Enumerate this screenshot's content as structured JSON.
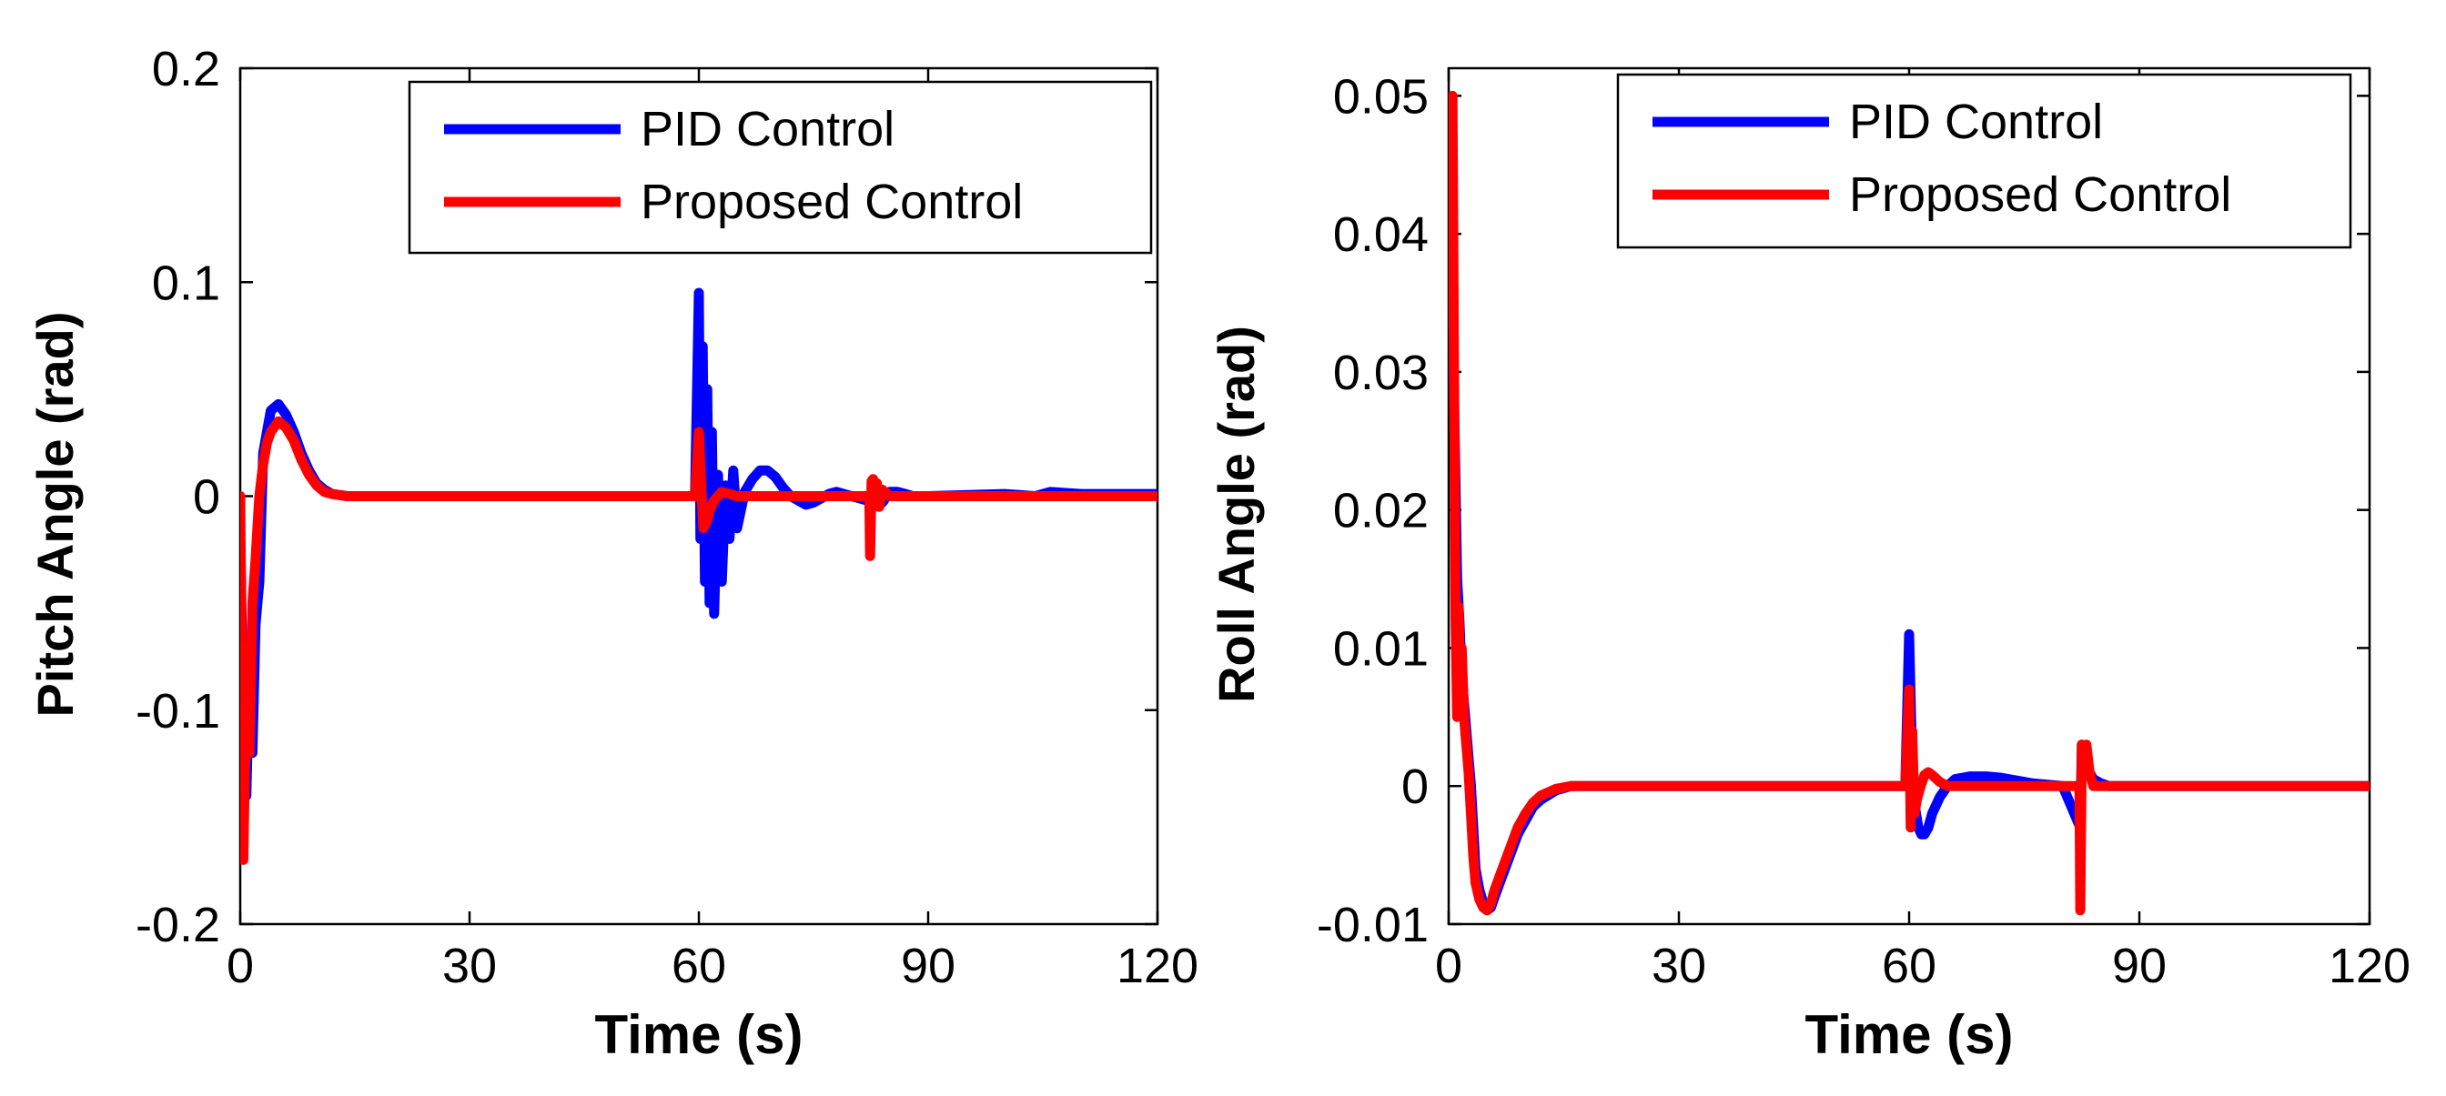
{
  "chart_data": [
    {
      "type": "line",
      "xlabel": "Time (s)",
      "ylabel": "Pitch Angle (rad)",
      "xlim": [
        0,
        120
      ],
      "ylim": [
        -0.2,
        0.2
      ],
      "xticks": [
        0,
        30,
        60,
        90,
        120
      ],
      "xtick_labels": [
        "0",
        "30",
        "60",
        "90",
        "120"
      ],
      "yticks": [
        -0.2,
        -0.1,
        0,
        0.1,
        0.2
      ],
      "ytick_labels": [
        "-0.2",
        "-0.1",
        "0",
        "0.1",
        "0.2"
      ],
      "legend_position": "top-right",
      "series": [
        {
          "name": "PID Control",
          "color": "#0000ff",
          "x": [
            0,
            0.4,
            0.8,
            1.2,
            1.6,
            2,
            2.5,
            3,
            3.5,
            4,
            5,
            6,
            7,
            8,
            9,
            10,
            11,
            12,
            14,
            20,
            30,
            40,
            50,
            59.5,
            60,
            60.2,
            60.5,
            60.8,
            61.1,
            61.4,
            61.7,
            62,
            62.5,
            63,
            63.5,
            64,
            64.5,
            65,
            66,
            67,
            68,
            69,
            70,
            71,
            72,
            73,
            74,
            75,
            76,
            77,
            78,
            80,
            82,
            83,
            84,
            85,
            86,
            87,
            88,
            90,
            100,
            104,
            106,
            110,
            120
          ],
          "y": [
            -0.02,
            -0.1,
            -0.14,
            -0.08,
            -0.12,
            -0.06,
            -0.04,
            0.02,
            0.03,
            0.04,
            0.043,
            0.038,
            0.03,
            0.02,
            0.012,
            0.006,
            0.003,
            0.001,
            0,
            0,
            0,
            0,
            0,
            0,
            0.095,
            -0.02,
            0.07,
            -0.04,
            0.05,
            -0.05,
            0.03,
            -0.055,
            0.01,
            -0.04,
            0.005,
            -0.02,
            0.012,
            -0.015,
            0.002,
            0.008,
            0.012,
            0.012,
            0.009,
            0.004,
            0,
            -0.002,
            -0.004,
            -0.003,
            -0.001,
            0.001,
            0.002,
            0,
            -0.002,
            0.004,
            -0.003,
            0.002,
            0.002,
            0.001,
            0,
            0,
            0.001,
            0,
            0.002,
            0.001,
            0.001
          ]
        },
        {
          "name": "Proposed Control",
          "color": "#ff0000",
          "x": [
            0,
            0.4,
            0.8,
            1.2,
            1.6,
            2,
            2.5,
            3,
            3.5,
            4,
            5,
            6,
            7,
            8,
            9,
            10,
            11,
            12,
            14,
            20,
            30,
            40,
            50,
            59.5,
            60,
            60.3,
            60.6,
            61,
            61.5,
            62,
            62.5,
            63,
            64,
            65,
            66,
            70,
            75,
            80,
            82.3,
            82.4,
            82.6,
            82.8,
            83,
            83.3,
            83.6,
            84,
            85,
            90,
            100,
            110,
            120
          ],
          "y": [
            0,
            -0.17,
            -0.09,
            -0.12,
            -0.05,
            -0.03,
            0,
            0.015,
            0.025,
            0.03,
            0.035,
            0.032,
            0.026,
            0.017,
            0.01,
            0.005,
            0.002,
            0.001,
            0,
            0,
            0,
            0,
            0,
            0,
            0.03,
            0.006,
            -0.015,
            -0.012,
            -0.006,
            -0.002,
            0,
            0.002,
            0.001,
            0,
            0,
            0,
            0,
            0,
            0,
            -0.028,
            0.007,
            0.008,
            0.005,
            0.006,
            -0.005,
            0.003,
            0,
            0,
            0,
            0,
            0
          ]
        }
      ]
    },
    {
      "type": "line",
      "xlabel": "Time (s)",
      "ylabel": "Roll Angle (rad)",
      "xlim": [
        0,
        120
      ],
      "ylim": [
        -0.01,
        0.052
      ],
      "xticks": [
        0,
        30,
        60,
        90,
        120
      ],
      "xtick_labels": [
        "0",
        "30",
        "60",
        "90",
        "120"
      ],
      "yticks": [
        -0.01,
        0,
        0.01,
        0.02,
        0.03,
        0.04,
        0.05
      ],
      "ytick_labels": [
        "-0.01",
        "0",
        "0.01",
        "0.02",
        "0.03",
        "0.04",
        "0.05"
      ],
      "legend_position": "top-right",
      "series": [
        {
          "name": "PID Control",
          "color": "#0000ff",
          "x": [
            0.5,
            0.8,
            1.1,
            1.4,
            1.7,
            2,
            2.3,
            2.6,
            2.9,
            3.2,
            3.5,
            4,
            4.5,
            5,
            5.5,
            6,
            7,
            8,
            9,
            10,
            11,
            12,
            14,
            16,
            20,
            30,
            40,
            50,
            59.5,
            60,
            60.3,
            60.6,
            60.9,
            61.2,
            61.6,
            62,
            62.5,
            63,
            64,
            65,
            66,
            68,
            70,
            72,
            74,
            76,
            80,
            82.3,
            82.5,
            82.7,
            82.9,
            83.2,
            83.5,
            84,
            85,
            86,
            90,
            120
          ],
          "y": [
            0.035,
            0.025,
            0.015,
            0.012,
            0.008,
            0.006,
            0.004,
            0.002,
            0,
            -0.003,
            -0.006,
            -0.0075,
            -0.0085,
            -0.009,
            -0.0088,
            -0.008,
            -0.0065,
            -0.005,
            -0.0035,
            -0.0025,
            -0.0015,
            -0.001,
            -0.0003,
            0,
            0,
            0,
            0,
            0,
            0,
            0.011,
            0.004,
            -0.001,
            -0.002,
            -0.003,
            -0.0035,
            -0.0035,
            -0.003,
            -0.002,
            -0.0008,
            0,
            0.0005,
            0.0007,
            0.0007,
            0.0006,
            0.0004,
            0.0002,
            0,
            -0.003,
            0.003,
            0.002,
            0.001,
            0.002,
            0.001,
            0.0005,
            0.0002,
            0,
            0,
            0
          ]
        },
        {
          "name": "Proposed Control",
          "color": "#ff0000",
          "x": [
            0.5,
            0.7,
            0.9,
            1.1,
            1.3,
            1.5,
            1.7,
            2,
            2.3,
            2.6,
            2.9,
            3.2,
            3.5,
            4,
            4.5,
            5,
            5.5,
            6,
            7,
            8,
            9,
            10,
            11,
            12,
            14,
            16,
            20,
            30,
            40,
            50,
            59.5,
            60,
            60.2,
            60.4,
            60.7,
            61,
            61.5,
            62,
            62.5,
            63,
            64,
            65,
            70,
            80,
            82.2,
            82.3,
            82.5,
            82.8,
            83.1,
            83.5,
            84,
            85,
            90,
            120
          ],
          "y": [
            0.05,
            0.03,
            0.012,
            0.005,
            0.013,
            0.006,
            0.01,
            0.005,
            0.003,
            0.001,
            -0.002,
            -0.005,
            -0.007,
            -0.0082,
            -0.0088,
            -0.009,
            -0.0085,
            -0.0075,
            -0.006,
            -0.0045,
            -0.003,
            -0.002,
            -0.0012,
            -0.0007,
            -0.0002,
            0,
            0,
            0,
            0,
            0,
            0,
            0.007,
            -0.003,
            0.004,
            -0.002,
            -0.001,
            0,
            0.0008,
            0.001,
            0.0008,
            0.0003,
            0,
            0,
            0,
            0,
            -0.009,
            0.003,
            0.002,
            0.003,
            0.001,
            0,
            0,
            0,
            0
          ]
        }
      ]
    }
  ]
}
